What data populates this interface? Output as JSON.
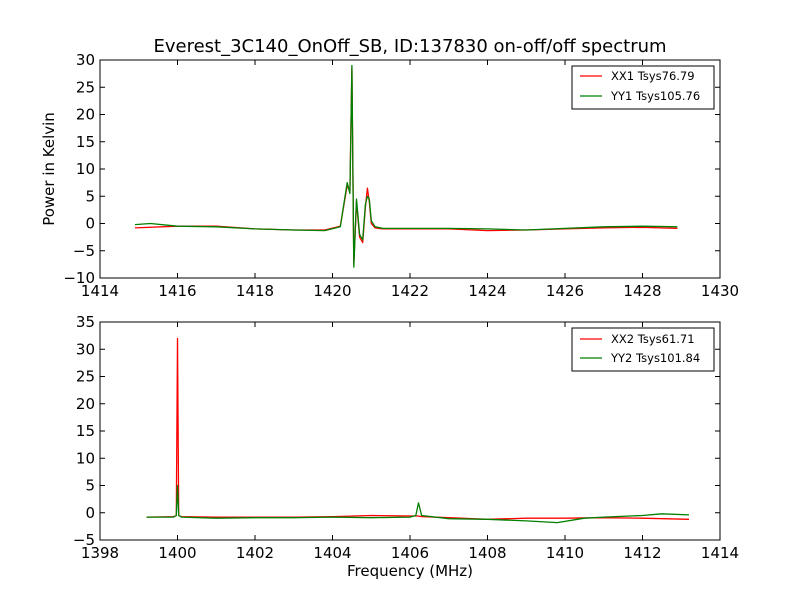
{
  "title": "Everest_3C140_OnOff_SB, ID:137830 on-off/off spectrum",
  "colors": {
    "red": "#ff0000",
    "green": "#007f00",
    "axes": "#000000"
  },
  "chart_data": [
    {
      "type": "line",
      "title": "Everest_3C140_OnOff_SB, ID:137830 on-off/off spectrum",
      "xlabel": "",
      "ylabel": "Power in Kelvin",
      "xlim": [
        1414,
        1430
      ],
      "ylim": [
        -10,
        30
      ],
      "xticks": [
        1414,
        1416,
        1418,
        1420,
        1422,
        1424,
        1426,
        1428,
        1430
      ],
      "yticks": [
        -10,
        -5,
        0,
        5,
        10,
        15,
        20,
        25,
        30
      ],
      "legend_position": "top-right",
      "series": [
        {
          "name": "XX1 Tsys76.79",
          "color": "#ff0000",
          "x": [
            1414.9,
            1416.0,
            1417.0,
            1418.0,
            1419.0,
            1419.8,
            1420.2,
            1420.38,
            1420.45,
            1420.5,
            1420.55,
            1420.62,
            1420.7,
            1420.78,
            1420.85,
            1420.9,
            1420.95,
            1421.0,
            1421.1,
            1421.3,
            1422.0,
            1423.0,
            1424.0,
            1425.0,
            1426.0,
            1427.0,
            1428.0,
            1428.9
          ],
          "y": [
            -0.8,
            -0.5,
            -0.5,
            -1.0,
            -1.2,
            -1.2,
            -0.5,
            7.0,
            6.0,
            28.5,
            -7.5,
            4.0,
            -2.5,
            -3.5,
            3.0,
            6.5,
            4.0,
            0.0,
            -0.8,
            -1.0,
            -1.0,
            -1.0,
            -1.3,
            -1.2,
            -1.0,
            -0.8,
            -0.7,
            -0.9
          ]
        },
        {
          "name": "YY1 Tsys105.76",
          "color": "#007f00",
          "x": [
            1414.9,
            1415.3,
            1416.0,
            1417.0,
            1418.0,
            1419.0,
            1419.8,
            1420.2,
            1420.38,
            1420.45,
            1420.5,
            1420.55,
            1420.62,
            1420.7,
            1420.78,
            1420.85,
            1420.9,
            1420.95,
            1421.0,
            1421.1,
            1421.3,
            1422.0,
            1423.0,
            1424.0,
            1425.0,
            1426.0,
            1427.0,
            1428.0,
            1428.9
          ],
          "y": [
            -0.2,
            0.0,
            -0.5,
            -0.6,
            -1.0,
            -1.2,
            -1.3,
            -0.6,
            7.5,
            5.5,
            29.0,
            -8.0,
            4.5,
            -2.0,
            -3.0,
            3.5,
            5.0,
            4.5,
            0.5,
            -0.6,
            -0.9,
            -0.9,
            -0.9,
            -1.0,
            -1.2,
            -0.9,
            -0.6,
            -0.5,
            -0.6
          ]
        }
      ]
    },
    {
      "type": "line",
      "title": "",
      "xlabel": "Frequency (MHz)",
      "ylabel": "",
      "xlim": [
        1398,
        1414
      ],
      "ylim": [
        -5,
        35
      ],
      "xticks": [
        1398,
        1400,
        1402,
        1404,
        1406,
        1408,
        1410,
        1412,
        1414
      ],
      "yticks": [
        -5,
        0,
        5,
        10,
        15,
        20,
        25,
        30,
        35
      ],
      "legend_position": "top-right",
      "series": [
        {
          "name": "XX2 Tsys61.71",
          "color": "#ff0000",
          "x": [
            1399.2,
            1399.9,
            1399.97,
            1400.0,
            1400.03,
            1400.1,
            1401.0,
            1402.0,
            1403.0,
            1404.0,
            1405.0,
            1406.0,
            1406.2,
            1406.3,
            1407.0,
            1408.0,
            1409.0,
            1410.0,
            1411.0,
            1412.0,
            1413.2
          ],
          "y": [
            -0.8,
            -0.7,
            -0.5,
            32.0,
            -0.5,
            -0.7,
            -0.8,
            -0.8,
            -0.8,
            -0.7,
            -0.5,
            -0.6,
            -0.6,
            -0.7,
            -0.9,
            -1.2,
            -1.0,
            -1.0,
            -0.9,
            -1.0,
            -1.2
          ]
        },
        {
          "name": "YY2 Tsys101.84",
          "color": "#007f00",
          "x": [
            1399.2,
            1399.9,
            1399.97,
            1400.0,
            1400.03,
            1400.1,
            1401.0,
            1402.0,
            1403.0,
            1404.0,
            1405.0,
            1406.0,
            1406.15,
            1406.22,
            1406.3,
            1407.0,
            1408.0,
            1409.0,
            1409.8,
            1410.5,
            1411.0,
            1412.0,
            1412.5,
            1413.2
          ],
          "y": [
            -0.8,
            -0.8,
            -0.5,
            5.0,
            -0.5,
            -0.8,
            -1.0,
            -0.9,
            -0.9,
            -0.8,
            -0.9,
            -0.8,
            -0.5,
            1.8,
            -0.5,
            -1.1,
            -1.2,
            -1.5,
            -1.8,
            -1.0,
            -0.8,
            -0.5,
            -0.2,
            -0.4
          ]
        }
      ]
    }
  ]
}
